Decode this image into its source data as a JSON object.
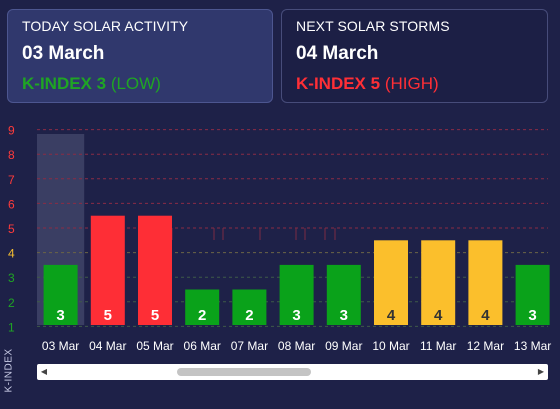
{
  "today": {
    "label": "TODAY SOLAR ACTIVITY",
    "date": "03 March",
    "k_label": "K-INDEX 3",
    "level": "(LOW)",
    "color": "#1fa524"
  },
  "next": {
    "label": "NEXT SOLAR STORMS",
    "date": "04 March",
    "k_label": "K-INDEX 5",
    "level": "(HIGH)",
    "color": "#ff2f36"
  },
  "chart_data": {
    "type": "bar",
    "ylabel": "K-INDEX",
    "ylim": [
      1,
      9
    ],
    "y_ticks": [
      1,
      2,
      3,
      4,
      5,
      6,
      7,
      8,
      9
    ],
    "tick_colors": {
      "1": "#1fa524",
      "2": "#1fa524",
      "3": "#1fa524",
      "4": "#f4bd30",
      "5": "#ff3b3b",
      "6": "#ff3b3b",
      "7": "#ff3b3b",
      "8": "#ff3b3b",
      "9": "#ff3b3b"
    },
    "categories": [
      "03 Mar",
      "04 Mar",
      "05 Mar",
      "06 Mar",
      "07 Mar",
      "08 Mar",
      "09 Mar",
      "10 Mar",
      "11 Mar",
      "12 Mar",
      "13 Mar"
    ],
    "values": [
      3,
      5,
      5,
      2,
      2,
      3,
      3,
      4,
      4,
      4,
      3
    ],
    "highlighted_category": "03 Mar",
    "colors": {
      "low": "#0aa21a",
      "medium": "#fbbf2c",
      "high": "#fe2e36"
    },
    "gridlines": "dashed"
  }
}
